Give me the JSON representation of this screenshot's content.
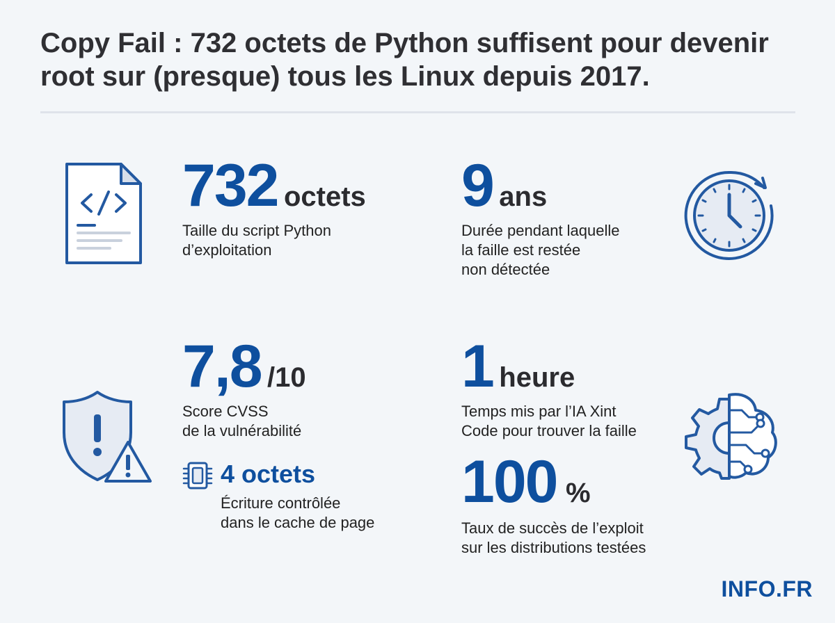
{
  "header": {
    "title": "Copy Fail : 732 octets de Python suffisent pour devenir root sur (presque) tous les Linux depuis 2017."
  },
  "stats": {
    "script_size": {
      "value": "732",
      "unit": "octets",
      "description": "Taille du script Python\nd’exploitation"
    },
    "undetected": {
      "value": "9",
      "unit": "ans",
      "description": "Durée pendant laquelle\nla faille est restée\nnon détectée"
    },
    "cvss": {
      "value": "7,8",
      "unit": "/10",
      "description": "Score CVSS\nde la vulnérabilité"
    },
    "ai_time": {
      "value": "1",
      "unit": "heure",
      "description": "Temps mis par l’IA Xint\nCode pour trouver la faille"
    },
    "write": {
      "value": "4 octets",
      "description": "Écriture contrôlée\ndans le cache de page"
    },
    "success": {
      "value": "100",
      "unit": "%",
      "description": "Taux de succès de l’exploit\nsur les distributions testées"
    }
  },
  "icons": {
    "script": "code-file-icon",
    "clock": "clock-icon",
    "shield": "shield-warning-icon",
    "chip": "chip-icon",
    "ai": "gear-brain-icon"
  },
  "colors": {
    "accent": "#0e4f9e",
    "icon_stroke": "#2359a1",
    "icon_fill": "#e6ebf3",
    "background": "#f3f6f9"
  },
  "footer": {
    "brand": "INFO.FR"
  }
}
